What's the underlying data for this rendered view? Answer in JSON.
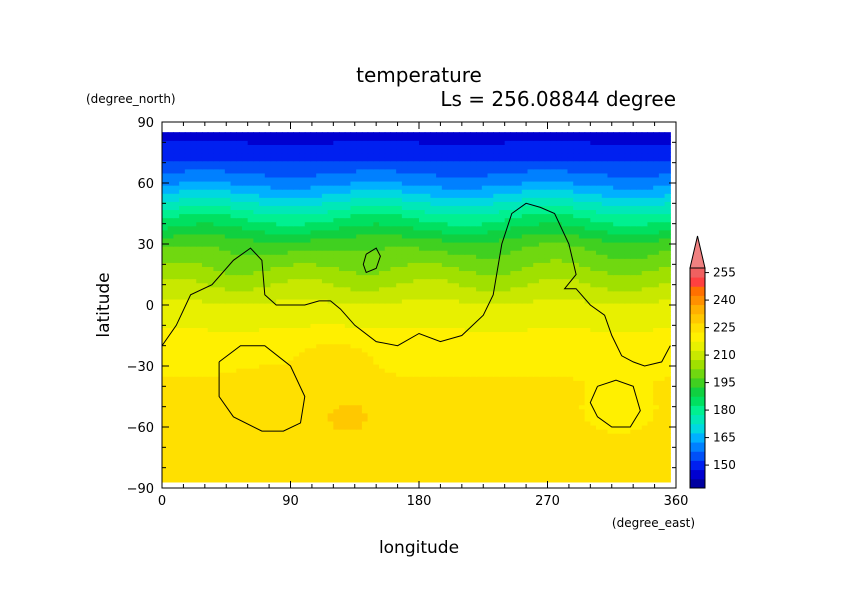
{
  "chart_data": {
    "type": "heatmap",
    "title": "temperature",
    "subtitle": "Ls = 256.08844 degree",
    "xlabel": "longitude",
    "ylabel": "latitude",
    "xunit": "(degree_east)",
    "yunit": "(degree_north)",
    "xlim": [
      0,
      360
    ],
    "ylim": [
      -90,
      90
    ],
    "data_lat_range": [
      -87,
      85
    ],
    "data_lon_range": [
      0,
      356
    ],
    "xticks": [
      0,
      90,
      180,
      270,
      360
    ],
    "yticks": [
      90,
      60,
      30,
      0,
      -30,
      -60,
      -90
    ],
    "colorbar": {
      "labels": [
        150,
        165,
        180,
        195,
        210,
        225,
        240,
        255
      ],
      "levels": [
        140,
        145,
        150,
        155,
        160,
        165,
        170,
        175,
        180,
        185,
        190,
        195,
        200,
        205,
        210,
        215,
        220,
        225,
        230,
        235,
        240,
        245,
        250,
        255,
        260
      ],
      "colors": [
        "#0000a0",
        "#0000d0",
        "#0020f0",
        "#0050f8",
        "#0080ff",
        "#00b0ff",
        "#00d8e0",
        "#00e8b8",
        "#00f090",
        "#00e060",
        "#10d040",
        "#40d020",
        "#70d810",
        "#a0e000",
        "#c8e800",
        "#e8f000",
        "#fff000",
        "#ffe000",
        "#ffc800",
        "#ffb000",
        "#ff9000",
        "#ff7000",
        "#ff4040",
        "#f06060",
        "#f08080"
      ]
    },
    "zonal_profile": {
      "lat": [
        -87,
        -75,
        -60,
        -45,
        -30,
        -15,
        0,
        15,
        30,
        45,
        60,
        75,
        85
      ],
      "temp": [
        226,
        226,
        227,
        227,
        224,
        221,
        216,
        207,
        198,
        182,
        164,
        152,
        148
      ]
    },
    "features": [
      {
        "lon": 130,
        "lat": -55,
        "temp": 231
      },
      {
        "lon": 120,
        "lat": -29,
        "temp": 229
      },
      {
        "lon": 70,
        "lat": -40,
        "temp": 226
      },
      {
        "lon": 320,
        "lat": -50,
        "temp": 221
      }
    ],
    "contour_lines": [
      {
        "lon": [
          0,
          10,
          20,
          35,
          50,
          62,
          70,
          72,
          80,
          90,
          100,
          110,
          118,
          125,
          135,
          150,
          165,
          180,
          195,
          210,
          225,
          232,
          238,
          245,
          255,
          265,
          275,
          285,
          290,
          282,
          290,
          300,
          310,
          315,
          322,
          330,
          338,
          350,
          356
        ],
        "lat": [
          -20,
          -10,
          5,
          10,
          22,
          28,
          22,
          5,
          0,
          0,
          0,
          2,
          2,
          -2,
          -10,
          -18,
          -20,
          -14,
          -18,
          -15,
          -5,
          5,
          30,
          45,
          50,
          48,
          45,
          30,
          15,
          8,
          8,
          0,
          -5,
          -15,
          -25,
          -28,
          -30,
          -28,
          -20
        ]
      },
      {
        "lon": [
          143,
          150,
          153,
          150,
          143,
          141,
          143
        ],
        "lat": [
          25,
          28,
          24,
          18,
          16,
          20,
          25
        ]
      },
      {
        "lon": [
          40,
          55,
          72,
          90,
          100,
          97,
          85,
          70,
          50,
          40,
          40
        ],
        "lat": [
          -28,
          -20,
          -20,
          -30,
          -45,
          -58,
          -62,
          -62,
          -55,
          -45,
          -28
        ]
      },
      {
        "lon": [
          305,
          318,
          330,
          335,
          328,
          315,
          305,
          300,
          305
        ],
        "lat": [
          -40,
          -37,
          -40,
          -52,
          -60,
          -60,
          -55,
          -48,
          -40
        ]
      }
    ]
  }
}
